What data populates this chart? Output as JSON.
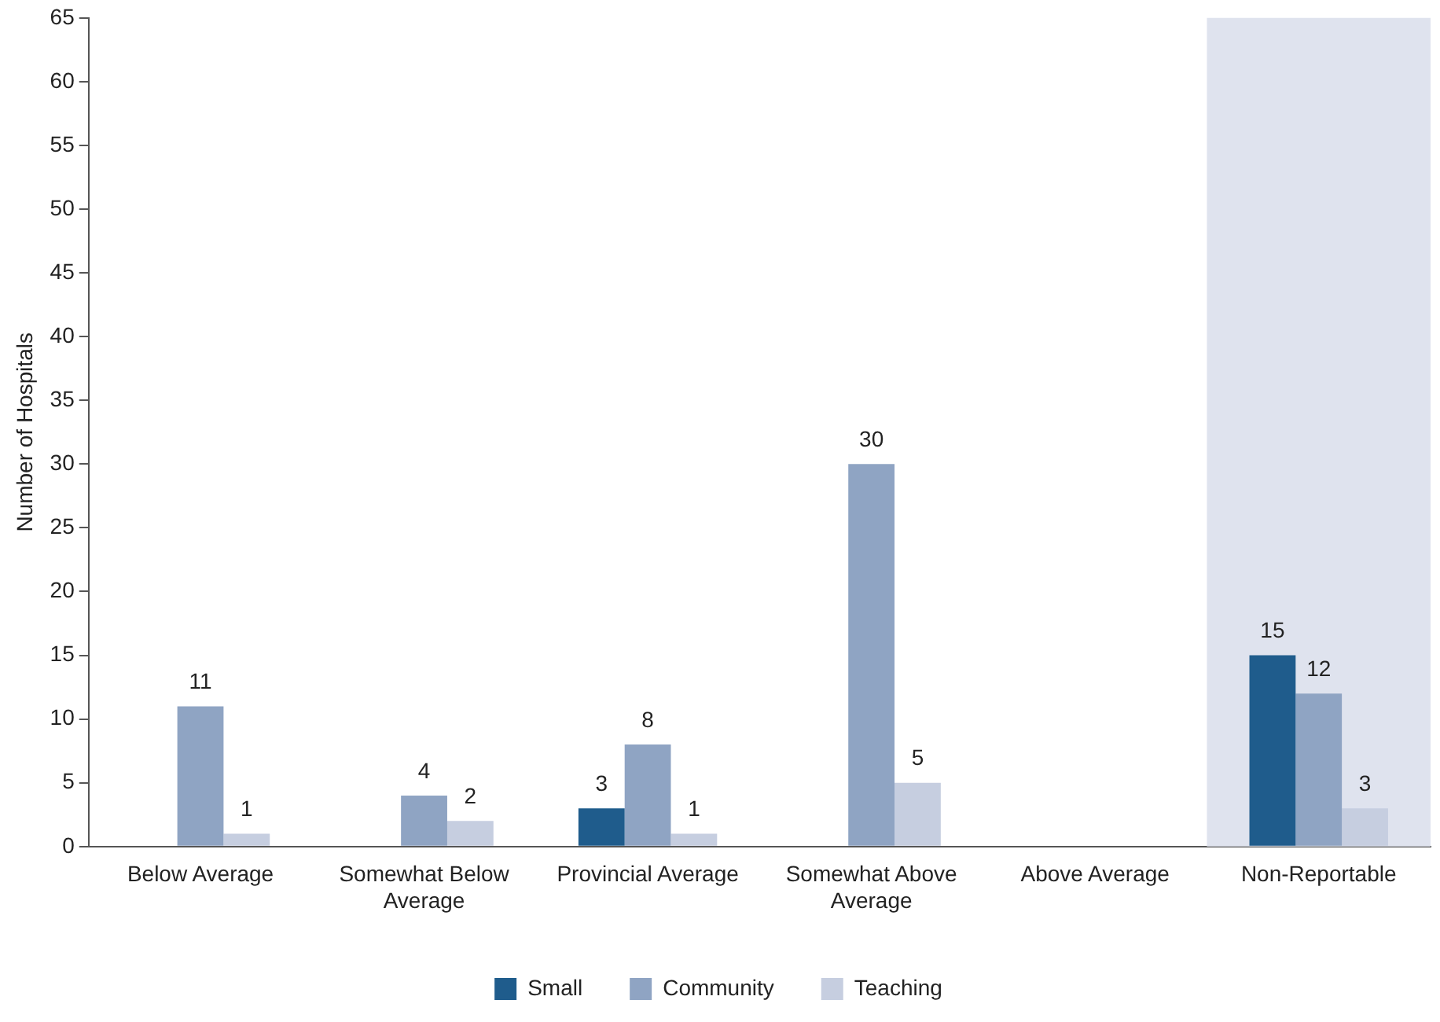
{
  "chart_data": {
    "type": "bar",
    "ylabel": "Number of Hospitals",
    "categories": [
      "Below Average",
      "Somewhat Below Average",
      "Provincial Average",
      "Somewhat Above Average",
      "Above Average",
      "Non-Reportable"
    ],
    "series": [
      {
        "name": "Small",
        "color": "#1f5c8c",
        "values": [
          0,
          0,
          3,
          0,
          0,
          15
        ],
        "value_labels": [
          null,
          null,
          "3",
          null,
          null,
          "15"
        ]
      },
      {
        "name": "Community",
        "color": "#8fa4c3",
        "values": [
          11,
          4,
          8,
          30,
          0,
          12
        ],
        "value_labels": [
          "11",
          "4",
          "8",
          "30",
          null,
          "12"
        ]
      },
      {
        "name": "Teaching",
        "color": "#c6cee0",
        "values": [
          1,
          2,
          1,
          5,
          0,
          3
        ],
        "value_labels": [
          "1",
          "2",
          "1",
          "5",
          null,
          "3"
        ]
      }
    ],
    "ylim": [
      0,
      65
    ],
    "yticks": [
      0,
      5,
      10,
      15,
      20,
      25,
      30,
      35,
      40,
      45,
      50,
      55,
      60,
      65
    ],
    "grid": false,
    "legend": "bottom",
    "bands": [
      {
        "axis": "x",
        "from": "Non-Reportable",
        "to": "Non-Reportable",
        "color": "#dfe3ee"
      }
    ]
  }
}
